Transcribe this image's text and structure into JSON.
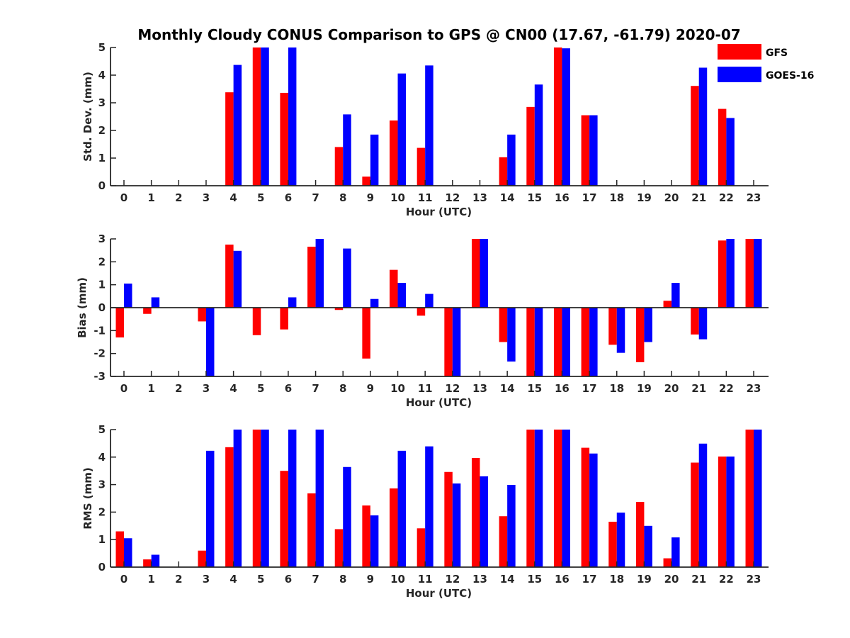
{
  "chart_data": {
    "title": "Monthly Cloudy CONUS Comparison to GPS @ CN00 (17.67, -61.79) 2020-07",
    "legend": {
      "placement": "top-right",
      "entries": [
        {
          "label": "GFS",
          "color": "#ff0000"
        },
        {
          "label": "GOES-16",
          "color": "#0000ff"
        }
      ]
    },
    "series_names": [
      "GFS",
      "GOES-16"
    ],
    "series_colors": [
      "#ff0000",
      "#0000ff"
    ],
    "categories": [
      "0",
      "1",
      "2",
      "3",
      "4",
      "5",
      "6",
      "7",
      "8",
      "9",
      "10",
      "11",
      "12",
      "13",
      "14",
      "15",
      "16",
      "17",
      "18",
      "19",
      "20",
      "21",
      "22",
      "23"
    ],
    "panels": [
      {
        "type": "bar",
        "ylabel": "Std. Dev. (mm)",
        "xlabel": "Hour (UTC)",
        "ylim": [
          0,
          5
        ],
        "yticks": [
          "0",
          "1",
          "2",
          "3",
          "4",
          "5"
        ],
        "series": [
          {
            "name": "GFS",
            "values": [
              0,
              0,
              0,
              0,
              3.38,
              5,
              3.36,
              0,
              1.4,
              0.33,
              2.36,
              1.37,
              0,
              0,
              1.03,
              2.85,
              5,
              2.55,
              0,
              0,
              0,
              3.61,
              2.78,
              0
            ]
          },
          {
            "name": "GOES-16",
            "values": [
              0,
              0,
              0,
              0,
              4.37,
              5,
              5,
              0,
              2.58,
              1.85,
              4.06,
              4.35,
              0,
              0,
              1.85,
              3.66,
              4.97,
              2.55,
              0,
              0,
              0,
              4.27,
              2.45,
              0
            ]
          }
        ]
      },
      {
        "type": "bar",
        "ylabel": "Bias (mm)",
        "xlabel": "Hour (UTC)",
        "ylim": [
          -3,
          3
        ],
        "yticks": [
          "-3",
          "-2",
          "-1",
          "0",
          "1",
          "2",
          "3"
        ],
        "series": [
          {
            "name": "GFS",
            "values": [
              -1.3,
              -0.27,
              0,
              -0.6,
              2.75,
              -1.2,
              -0.95,
              2.66,
              -0.1,
              -2.22,
              1.65,
              -0.35,
              -3,
              3,
              -1.5,
              -3,
              -3,
              -3,
              -1.62,
              -2.38,
              0.3,
              -1.17,
              2.93,
              3
            ]
          },
          {
            "name": "GOES-16",
            "values": [
              1.05,
              0.45,
              0,
              -3,
              2.48,
              -0.02,
              0.45,
              3,
              2.58,
              0.38,
              1.08,
              0.6,
              -3,
              3,
              -2.35,
              -3,
              -3,
              -3,
              -1.97,
              -1.5,
              1.08,
              -1.38,
              3,
              3
            ]
          }
        ]
      },
      {
        "type": "bar",
        "ylabel": "RMS (mm)",
        "xlabel": "Hour (UTC)",
        "ylim": [
          0,
          5
        ],
        "yticks": [
          "0",
          "1",
          "2",
          "3",
          "4",
          "5"
        ],
        "series": [
          {
            "name": "GFS",
            "values": [
              1.3,
              0.28,
              0,
              0.6,
              4.36,
              5,
              3.5,
              2.68,
              1.38,
              2.24,
              2.86,
              1.41,
              3.46,
              3.97,
              1.85,
              5,
              5,
              4.34,
              1.65,
              2.37,
              0.32,
              3.8,
              4.02,
              5
            ]
          },
          {
            "name": "GOES-16",
            "values": [
              1.05,
              0.45,
              0,
              4.23,
              5,
              5,
              5,
              5,
              3.64,
              1.88,
              4.23,
              4.39,
              3.04,
              3.3,
              2.99,
              5,
              5,
              4.13,
              1.98,
              1.5,
              1.08,
              4.49,
              4.02,
              5
            ]
          }
        ]
      }
    ]
  }
}
